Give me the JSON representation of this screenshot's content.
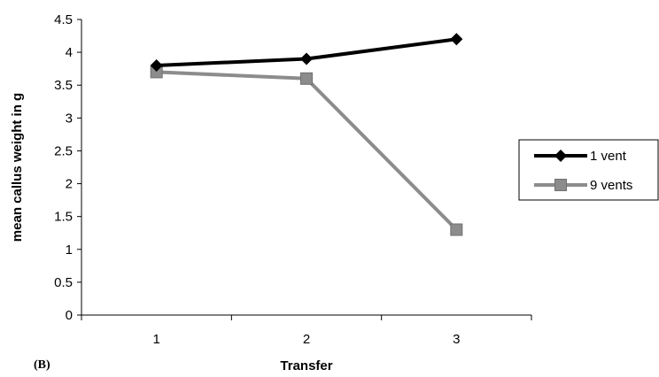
{
  "chart_data": {
    "type": "line",
    "categories": [
      "1",
      "2",
      "3"
    ],
    "x": [
      1,
      2,
      3
    ],
    "series": [
      {
        "name": "1 vent",
        "values": [
          3.8,
          3.9,
          4.2
        ],
        "color": "#000000",
        "marker": "diamond"
      },
      {
        "name": "9 vents",
        "values": [
          3.7,
          3.6,
          1.3
        ],
        "color": "#8c8c8c",
        "marker": "square"
      }
    ],
    "title": "",
    "xlabel": "Transfer",
    "ylabel": "mean callus weight in g",
    "ylim": [
      0,
      4.5
    ],
    "yticks": [
      "0",
      "0.5",
      "1",
      "1.5",
      "2",
      "2.5",
      "3",
      "3.5",
      "4",
      "4.5"
    ],
    "grid": false,
    "legend_position": "right"
  },
  "panel_label": "(B)"
}
